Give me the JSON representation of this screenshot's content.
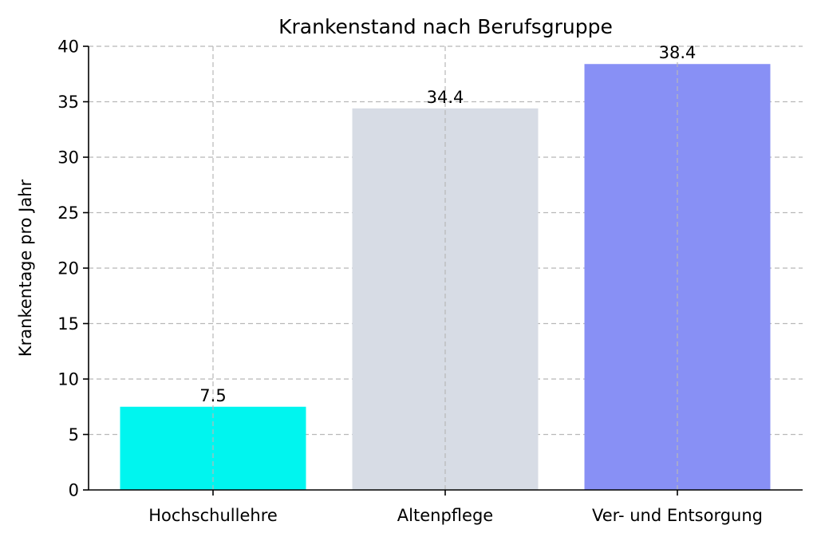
{
  "chart_data": {
    "type": "bar",
    "title": "Krankenstand nach Berufsgruppe",
    "xlabel": "",
    "ylabel": "Krankentage pro Jahr",
    "categories": [
      "Hochschullehre",
      "Altenpflege",
      "Ver- und Entsorgung"
    ],
    "values": [
      7.5,
      34.4,
      38.4
    ],
    "value_labels": [
      "7.5",
      "34.4",
      "38.4"
    ],
    "colors": [
      "#00f5ef",
      "#d7dce5",
      "#8890f5"
    ],
    "ylim": [
      0,
      40
    ],
    "yticks": [
      0,
      5,
      10,
      15,
      20,
      25,
      30,
      35,
      40
    ],
    "grid": true,
    "grid_style": "dashed",
    "legend": "none"
  }
}
